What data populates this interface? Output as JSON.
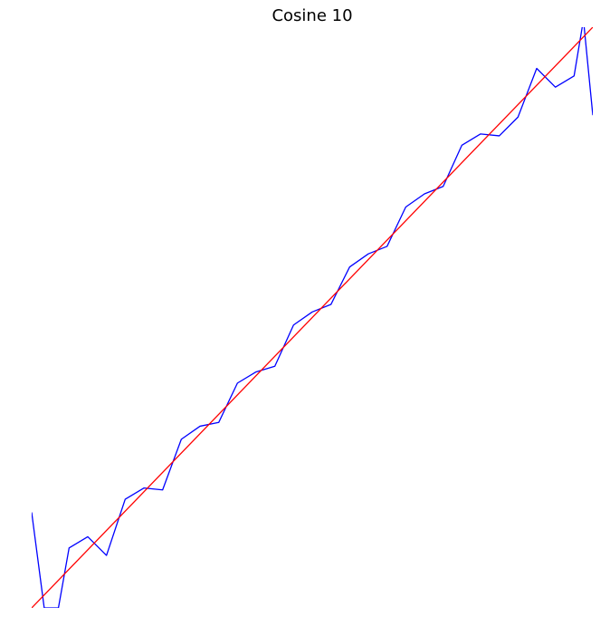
{
  "chart_data": {
    "type": "line",
    "title": "Cosine 10",
    "xlabel": "",
    "ylabel": "",
    "axes_visible": false,
    "grid": false,
    "xlim": [
      0,
      30
    ],
    "ylim": [
      0,
      31
    ],
    "series": [
      {
        "color": "#0000ff",
        "x": [
          0,
          0.67,
          1.43,
          2,
          3,
          4,
          5,
          6,
          7,
          8,
          9,
          10,
          11,
          12,
          13,
          14,
          15,
          16,
          17,
          18,
          19,
          20,
          21,
          22,
          23,
          24,
          25,
          26,
          27,
          28,
          29,
          29.5,
          30
        ],
        "y": [
          5.1,
          0,
          0,
          3.2,
          3.8,
          2.8,
          5.8,
          6.4,
          6.3,
          9,
          9.7,
          9.9,
          12,
          12.6,
          12.9,
          15.1,
          15.8,
          16.2,
          18.2,
          18.9,
          19.3,
          21.4,
          22.1,
          22.5,
          24.7,
          25.3,
          25.2,
          26.2,
          28.8,
          27.8,
          28.4,
          31.4,
          26.3
        ]
      },
      {
        "color": "#ff0000",
        "x": [
          0,
          30
        ],
        "y": [
          0,
          31
        ]
      }
    ]
  }
}
